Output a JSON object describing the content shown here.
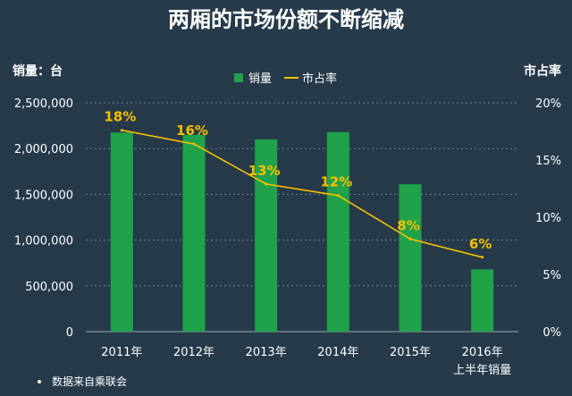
{
  "chart_data": {
    "type": "bar",
    "title": "两厢的市场份额不断缩减",
    "ylabel": "销量：台",
    "y2label": "市占率",
    "categories": [
      "2011年",
      "2012年",
      "2013年",
      "2014年",
      "2015年",
      "2016年"
    ],
    "category_sublabels": [
      "",
      "",
      "",
      "",
      "",
      "上半年销量"
    ],
    "series": [
      {
        "name": "销量",
        "type": "bar",
        "axis": "left",
        "color": "#1fa24a",
        "values": [
          2175000,
          2150000,
          2100000,
          2180000,
          1610000,
          680000
        ]
      },
      {
        "name": "市占率",
        "type": "line",
        "axis": "right",
        "color": "#f5c000",
        "values": [
          0.176,
          0.164,
          0.129,
          0.119,
          0.081,
          0.065
        ],
        "data_labels": [
          "18%",
          "16%",
          "13%",
          "12%",
          "8%",
          "6%"
        ]
      }
    ],
    "ylim": [
      0,
      2500000
    ],
    "yticks": [
      "0",
      "500,000",
      "1,000,000",
      "1,500,000",
      "2,000,000",
      "2,500,000"
    ],
    "y2lim": [
      0,
      0.2
    ],
    "y2ticks": [
      "0%",
      "5%",
      "10%",
      "15%",
      "20%"
    ],
    "grid": true,
    "legend_position": "top",
    "source_note": "数据来自乘联会"
  }
}
